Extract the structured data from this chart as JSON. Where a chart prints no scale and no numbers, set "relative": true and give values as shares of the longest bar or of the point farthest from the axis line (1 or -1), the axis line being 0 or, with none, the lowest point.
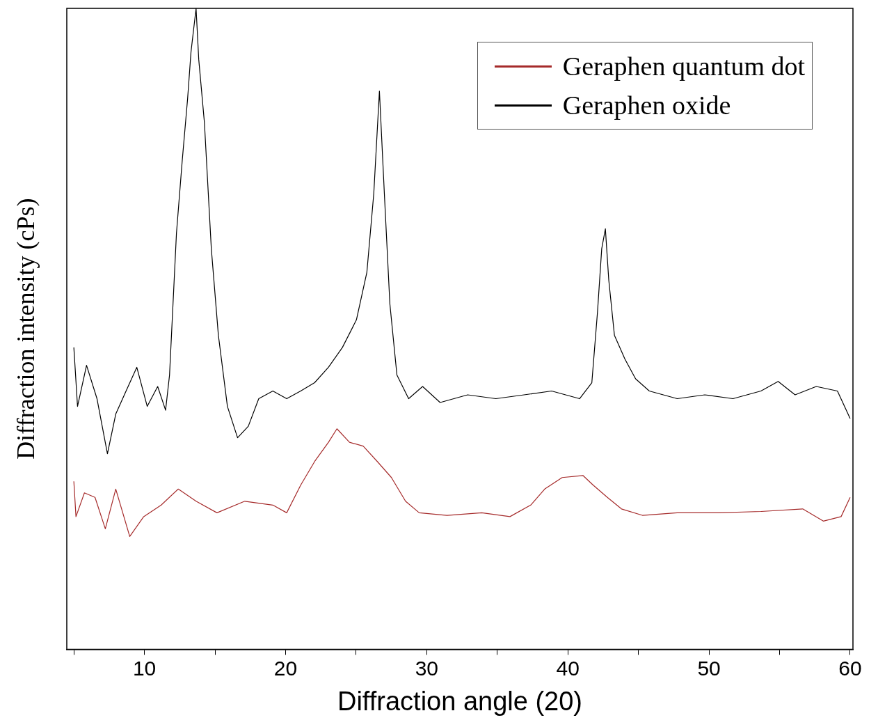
{
  "chart_data": {
    "type": "line",
    "xlabel": "Diffraction angle (20)",
    "ylabel": "Diffraction intensity (cPs)",
    "relative": true,
    "grid": false,
    "legend": "top right",
    "marker": "none",
    "line_style": "solid",
    "xlim": [
      4.5,
      60.2
    ],
    "xticks": [
      {
        "value": 5,
        "label": null
      },
      10,
      {
        "value": 15,
        "label": null
      },
      20,
      {
        "value": 25,
        "label": null
      },
      30,
      {
        "value": 35,
        "label": null
      },
      40,
      {
        "value": 45,
        "label": null
      },
      50,
      {
        "value": 55,
        "label": null
      },
      60
    ],
    "series": [
      {
        "name": "Geraphen quantum dot",
        "color": "#a52a2a",
        "x": [
          5.0,
          5.15,
          5.75,
          6.5,
          7.23,
          7.97,
          8.96,
          9.95,
          11.19,
          12.4,
          13.66,
          15.14,
          17.11,
          19.1,
          20.08,
          21.07,
          22.06,
          23.04,
          23.64,
          24.53,
          25.5,
          26.5,
          27.5,
          28.5,
          29.47,
          31.44,
          33.9,
          35.9,
          37.37,
          38.36,
          39.6,
          41.08,
          41.8,
          42.8,
          43.8,
          45.28,
          47.75,
          50.7,
          53.68,
          56.64,
          58.1,
          59.36,
          60.0
        ],
        "values": [
          0.262,
          0.207,
          0.244,
          0.237,
          0.188,
          0.25,
          0.176,
          0.207,
          0.225,
          0.25,
          0.231,
          0.213,
          0.231,
          0.225,
          0.213,
          0.256,
          0.293,
          0.323,
          0.344,
          0.323,
          0.317,
          0.293,
          0.268,
          0.231,
          0.213,
          0.209,
          0.213,
          0.207,
          0.225,
          0.25,
          0.268,
          0.271,
          0.256,
          0.237,
          0.219,
          0.209,
          0.213,
          0.213,
          0.215,
          0.219,
          0.2,
          0.207,
          0.237
        ]
      },
      {
        "name": "Geraphen oxide",
        "color": "#000000",
        "x": [
          5.0,
          5.26,
          5.9,
          6.64,
          7.38,
          7.97,
          8.7,
          9.46,
          10.2,
          10.94,
          11.5,
          11.78,
          12.27,
          12.67,
          13.06,
          13.3,
          13.66,
          13.85,
          14.25,
          14.74,
          15.24,
          15.88,
          16.6,
          17.36,
          18.1,
          19.1,
          20.08,
          21.07,
          22.06,
          23.04,
          24.03,
          25.02,
          25.76,
          26.25,
          26.65,
          27.0,
          27.39,
          27.89,
          28.72,
          29.71,
          30.95,
          32.9,
          34.9,
          36.9,
          38.85,
          40.83,
          41.7,
          42.1,
          42.4,
          42.66,
          42.9,
          43.3,
          44.04,
          44.8,
          45.77,
          47.75,
          49.7,
          51.7,
          53.68,
          54.9,
          56.1,
          57.6,
          59.1,
          60.0
        ],
        "values": [
          0.471,
          0.379,
          0.443,
          0.391,
          0.305,
          0.367,
          0.403,
          0.44,
          0.379,
          0.41,
          0.373,
          0.428,
          0.649,
          0.76,
          0.859,
          0.932,
          1.0,
          0.92,
          0.822,
          0.625,
          0.49,
          0.379,
          0.33,
          0.348,
          0.391,
          0.403,
          0.391,
          0.403,
          0.416,
          0.44,
          0.471,
          0.514,
          0.588,
          0.711,
          0.871,
          0.711,
          0.539,
          0.428,
          0.391,
          0.41,
          0.385,
          0.397,
          0.391,
          0.397,
          0.403,
          0.391,
          0.416,
          0.526,
          0.625,
          0.656,
          0.576,
          0.49,
          0.453,
          0.422,
          0.403,
          0.391,
          0.397,
          0.391,
          0.403,
          0.418,
          0.397,
          0.41,
          0.403,
          0.36
        ]
      }
    ]
  }
}
